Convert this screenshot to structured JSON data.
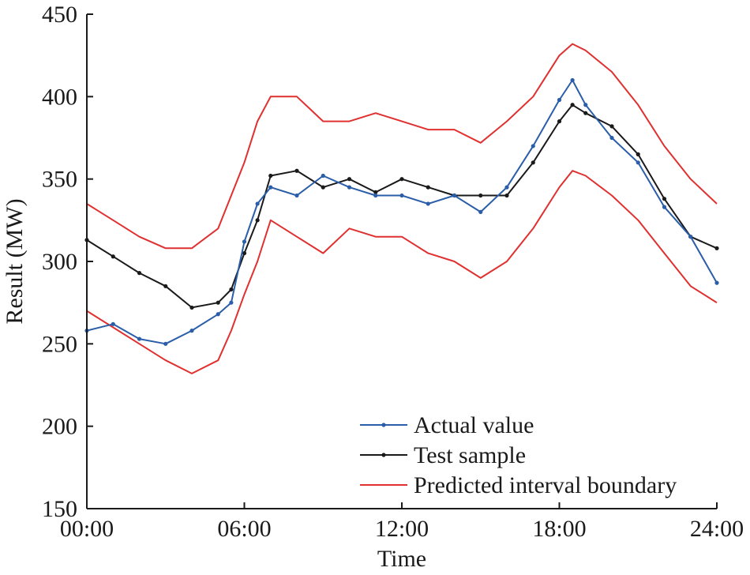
{
  "chart_data": {
    "type": "line",
    "xlabel": "Time",
    "ylabel": "Result (MW)",
    "xlim": [
      0,
      24
    ],
    "ylim": [
      150,
      450
    ],
    "x_ticks": [
      {
        "value": 0,
        "label": "00:00"
      },
      {
        "value": 6,
        "label": "06:00"
      },
      {
        "value": 12,
        "label": "12:00"
      },
      {
        "value": 18,
        "label": "18:00"
      },
      {
        "value": 24,
        "label": "24:00"
      }
    ],
    "y_ticks": [
      {
        "value": 150,
        "label": "150"
      },
      {
        "value": 200,
        "label": "200"
      },
      {
        "value": 250,
        "label": "250"
      },
      {
        "value": 300,
        "label": "300"
      },
      {
        "value": 350,
        "label": "350"
      },
      {
        "value": 400,
        "label": "400"
      },
      {
        "value": 450,
        "label": "450"
      }
    ],
    "grid": false,
    "legend_position": "bottom-right",
    "series": [
      {
        "name": "Actual value",
        "color": "#2b5ea8",
        "marker": "dot",
        "x": [
          0,
          1,
          2,
          3,
          4,
          5,
          5.5,
          6,
          6.5,
          7,
          8,
          9,
          10,
          11,
          12,
          13,
          14,
          15,
          16,
          17,
          18,
          18.5,
          19,
          20,
          21,
          22,
          23,
          24
        ],
        "y": [
          258,
          262,
          253,
          250,
          258,
          268,
          275,
          312,
          335,
          345,
          340,
          352,
          345,
          340,
          340,
          335,
          340,
          330,
          345,
          370,
          398,
          410,
          395,
          375,
          360,
          333,
          315,
          287
        ]
      },
      {
        "name": "Test sample",
        "color": "#1a1a1a",
        "marker": "dot",
        "x": [
          0,
          1,
          2,
          3,
          4,
          5,
          5.5,
          6,
          6.5,
          7,
          8,
          9,
          10,
          11,
          12,
          13,
          14,
          15,
          16,
          17,
          18,
          18.5,
          19,
          20,
          21,
          22,
          23,
          24
        ],
        "y": [
          313,
          303,
          293,
          285,
          272,
          275,
          283,
          305,
          325,
          352,
          355,
          345,
          350,
          342,
          350,
          345,
          340,
          340,
          340,
          360,
          385,
          395,
          390,
          382,
          365,
          338,
          315,
          308
        ]
      },
      {
        "name": "Predicted interval boundary",
        "color": "#e03030",
        "marker": "none",
        "x": [
          0,
          1,
          2,
          3,
          4,
          5,
          5.5,
          6,
          6.5,
          7,
          8,
          9,
          10,
          11,
          12,
          13,
          14,
          15,
          16,
          17,
          18,
          18.5,
          19,
          20,
          21,
          22,
          23,
          24
        ],
        "y": [
          335,
          325,
          315,
          308,
          308,
          320,
          340,
          360,
          385,
          400,
          400,
          385,
          385,
          390,
          385,
          380,
          380,
          372,
          385,
          400,
          425,
          432,
          428,
          415,
          395,
          370,
          350,
          335
        ]
      },
      {
        "name": "Predicted interval boundary",
        "color": "#e03030",
        "marker": "none",
        "x": [
          0,
          1,
          2,
          3,
          4,
          5,
          5.5,
          6,
          6.5,
          7,
          8,
          9,
          10,
          11,
          12,
          13,
          14,
          15,
          16,
          17,
          18,
          18.5,
          19,
          20,
          21,
          22,
          23,
          24
        ],
        "y": [
          270,
          260,
          250,
          240,
          232,
          240,
          258,
          280,
          300,
          325,
          315,
          305,
          320,
          315,
          315,
          305,
          300,
          290,
          300,
          320,
          345,
          355,
          352,
          340,
          325,
          305,
          285,
          275
        ]
      }
    ]
  }
}
